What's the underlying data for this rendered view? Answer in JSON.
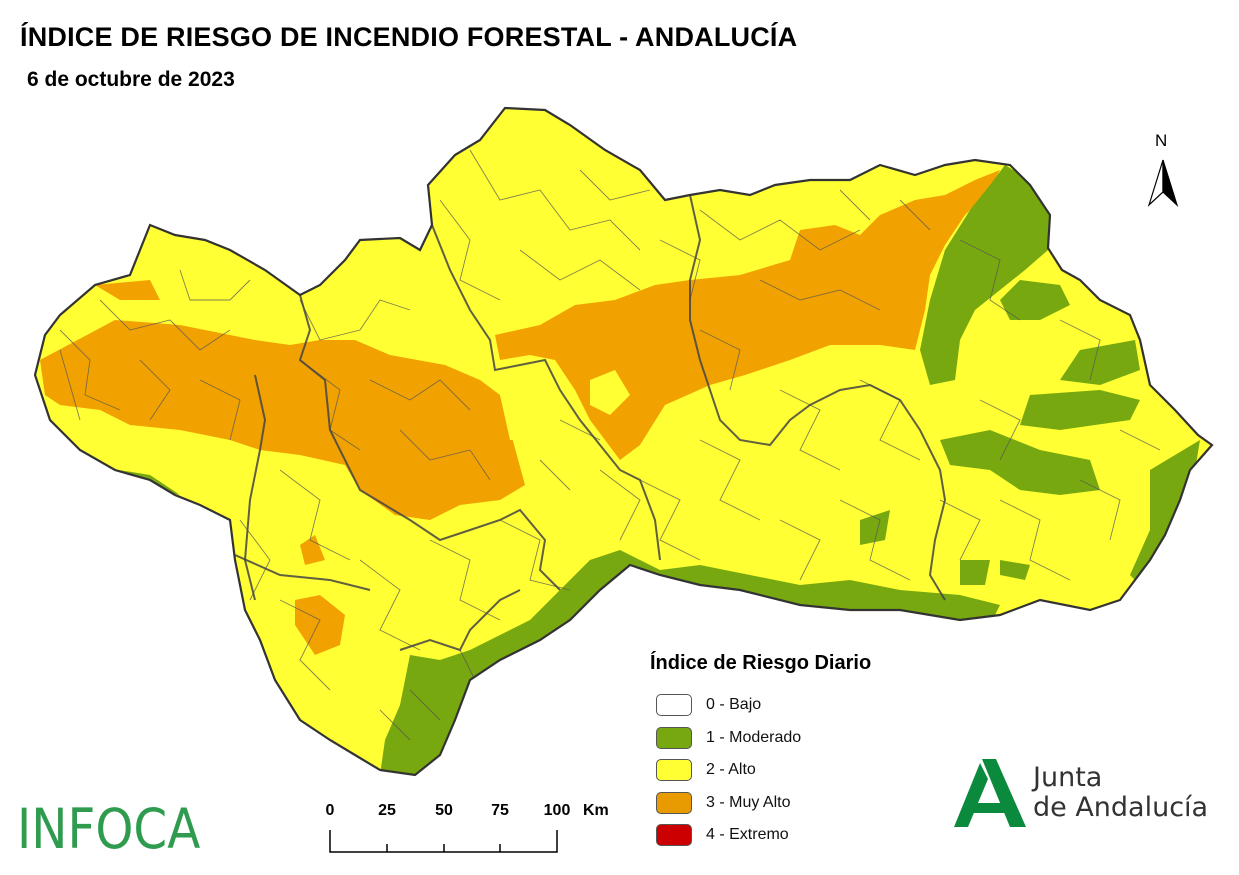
{
  "header": {
    "title": "ÍNDICE DE RIESGO DE INCENDIO FORESTAL - ANDALUCÍA",
    "date": "6 de octubre de 2023"
  },
  "north_arrow": {
    "label": "N"
  },
  "legend": {
    "title": "Índice de Riesgo Diario",
    "items": [
      {
        "label": "0 - Bajo",
        "color": "#ffffff"
      },
      {
        "label": "1 - Moderado",
        "color": "#77a80f"
      },
      {
        "label": "2 - Alto",
        "color": "#ffff33"
      },
      {
        "label": "3 - Muy Alto",
        "color": "#e89b00"
      },
      {
        "label": "4 - Extremo",
        "color": "#cc0000"
      }
    ]
  },
  "scale_bar": {
    "ticks": [
      "0",
      "25",
      "50",
      "75",
      "100"
    ],
    "unit": "Km"
  },
  "logos": {
    "infoca": "INFOCA",
    "junta_line1": "Junta",
    "junta_line2": "de Andalucía"
  },
  "colors": {
    "yellow": "#ffff33",
    "orange": "#f2a200",
    "green": "#77a80f",
    "border": "#555555"
  }
}
